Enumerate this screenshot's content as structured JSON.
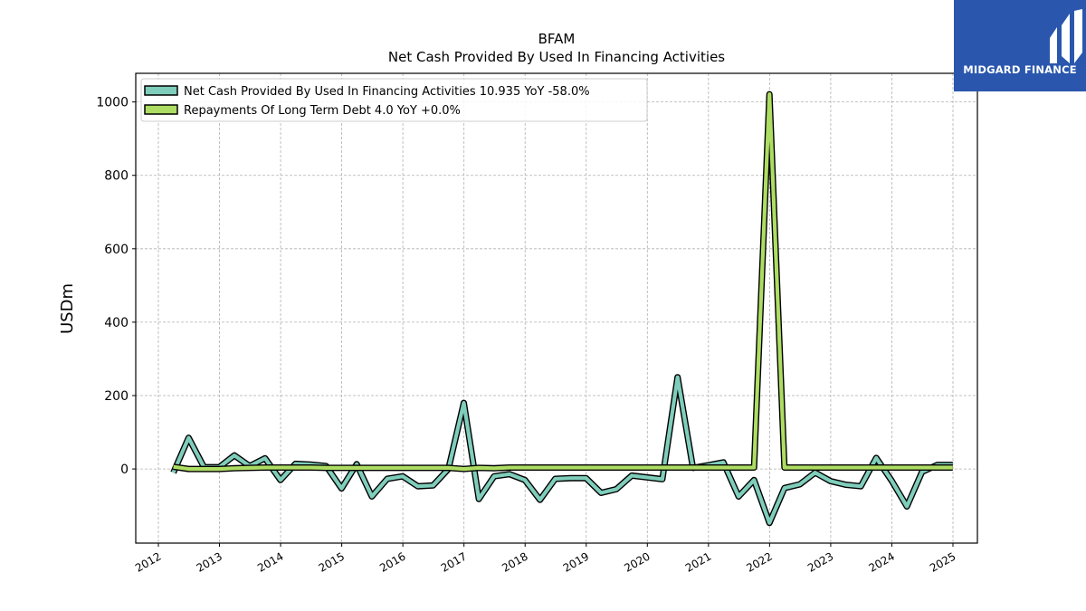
{
  "brand": {
    "name": "MIDGARD FINANCE",
    "background": "#2a57ad"
  },
  "chart_data": {
    "type": "line",
    "title": "BFAM",
    "subtitle": "Net Cash Provided By Used In Financing Activities",
    "xlabel": "",
    "ylabel": "USDm",
    "xlim": [
      2011.63,
      2025.4
    ],
    "ylim": [
      -202,
      1078
    ],
    "x_ticks": [
      "2012",
      "2013",
      "2014",
      "2015",
      "2016",
      "2017",
      "2018",
      "2019",
      "2020",
      "2021",
      "2022",
      "2023",
      "2024",
      "2025"
    ],
    "y_ticks": [
      "0",
      "200",
      "400",
      "600",
      "800",
      "1000"
    ],
    "grid": true,
    "legend_position": "top-left",
    "series": [
      {
        "name": "Net Cash Provided By Used In Financing Activities",
        "legend_label": "Net Cash Provided By Used In Financing Activities  10.935 YoY -58.0%",
        "color": "#7fcdbb",
        "points": [
          [
            "2012-03-31",
            -10
          ],
          [
            "2012-06-30",
            85
          ],
          [
            "2012-09-30",
            5
          ],
          [
            "2012-12-31",
            5
          ],
          [
            "2013-03-31",
            37
          ],
          [
            "2013-06-30",
            8
          ],
          [
            "2013-09-30",
            29
          ],
          [
            "2013-12-31",
            -30
          ],
          [
            "2014-03-31",
            14
          ],
          [
            "2014-06-30",
            12
          ],
          [
            "2014-09-30",
            8
          ],
          [
            "2014-12-31",
            -53
          ],
          [
            "2015-03-31",
            13
          ],
          [
            "2015-06-30",
            -75
          ],
          [
            "2015-09-30",
            -27
          ],
          [
            "2015-12-31",
            -20
          ],
          [
            "2016-03-31",
            -47
          ],
          [
            "2016-06-30",
            -45
          ],
          [
            "2016-09-30",
            0
          ],
          [
            "2016-12-31",
            180
          ],
          [
            "2017-03-31",
            -82
          ],
          [
            "2017-06-30",
            -20
          ],
          [
            "2017-09-30",
            -14
          ],
          [
            "2017-12-31",
            -30
          ],
          [
            "2018-03-31",
            -84
          ],
          [
            "2018-06-30",
            -27
          ],
          [
            "2018-09-30",
            -25
          ],
          [
            "2018-12-31",
            -25
          ],
          [
            "2019-03-31",
            -65
          ],
          [
            "2019-06-30",
            -55
          ],
          [
            "2019-09-30",
            -18
          ],
          [
            "2019-12-31",
            -23
          ],
          [
            "2020-03-31",
            -28
          ],
          [
            "2020-06-30",
            250
          ],
          [
            "2020-09-30",
            3
          ],
          [
            "2020-12-31",
            10
          ],
          [
            "2021-03-31",
            18
          ],
          [
            "2021-06-30",
            -75
          ],
          [
            "2021-09-30",
            -30
          ],
          [
            "2021-12-31",
            -147
          ],
          [
            "2022-03-31",
            -52
          ],
          [
            "2022-06-30",
            -42
          ],
          [
            "2022-09-30",
            -10
          ],
          [
            "2022-12-31",
            -33
          ],
          [
            "2023-03-31",
            -43
          ],
          [
            "2023-06-30",
            -47
          ],
          [
            "2023-09-30",
            30
          ],
          [
            "2023-12-31",
            -32
          ],
          [
            "2024-03-31",
            -102
          ],
          [
            "2024-06-30",
            -8
          ],
          [
            "2024-09-30",
            11
          ],
          [
            "2024-12-31",
            11
          ]
        ]
      },
      {
        "name": "Repayments Of Long Term Debt",
        "legend_label": "Repayments Of Long Term Debt  4.0 YoY +0.0%",
        "color": "#addd63",
        "points": [
          [
            "2012-03-31",
            6
          ],
          [
            "2012-06-30",
            0
          ],
          [
            "2012-09-30",
            0
          ],
          [
            "2012-12-31",
            0
          ],
          [
            "2013-03-31",
            2
          ],
          [
            "2013-06-30",
            3
          ],
          [
            "2013-09-30",
            4
          ],
          [
            "2013-12-31",
            4
          ],
          [
            "2014-03-31",
            4
          ],
          [
            "2014-06-30",
            4
          ],
          [
            "2014-09-30",
            3
          ],
          [
            "2014-12-31",
            3
          ],
          [
            "2015-03-31",
            3
          ],
          [
            "2015-06-30",
            3
          ],
          [
            "2015-09-30",
            3
          ],
          [
            "2015-12-31",
            3
          ],
          [
            "2016-03-31",
            3
          ],
          [
            "2016-06-30",
            3
          ],
          [
            "2016-09-30",
            3
          ],
          [
            "2016-12-31",
            0
          ],
          [
            "2017-03-31",
            3
          ],
          [
            "2017-06-30",
            2
          ],
          [
            "2017-09-30",
            4
          ],
          [
            "2017-12-31",
            4
          ],
          [
            "2018-03-31",
            4
          ],
          [
            "2018-06-30",
            4
          ],
          [
            "2018-09-30",
            4
          ],
          [
            "2018-12-31",
            4
          ],
          [
            "2019-03-31",
            4
          ],
          [
            "2019-06-30",
            4
          ],
          [
            "2019-09-30",
            4
          ],
          [
            "2019-12-31",
            4
          ],
          [
            "2020-03-31",
            4
          ],
          [
            "2020-06-30",
            4
          ],
          [
            "2020-09-30",
            4
          ],
          [
            "2020-12-31",
            4
          ],
          [
            "2021-03-31",
            4
          ],
          [
            "2021-06-30",
            4
          ],
          [
            "2021-09-30",
            4
          ],
          [
            "2021-12-31",
            1021
          ],
          [
            "2022-03-31",
            4
          ],
          [
            "2022-06-30",
            4
          ],
          [
            "2022-09-30",
            4
          ],
          [
            "2022-12-31",
            4
          ],
          [
            "2023-03-31",
            4
          ],
          [
            "2023-06-30",
            4
          ],
          [
            "2023-09-30",
            4
          ],
          [
            "2023-12-31",
            4
          ],
          [
            "2024-03-31",
            4
          ],
          [
            "2024-06-30",
            4
          ],
          [
            "2024-09-30",
            4
          ],
          [
            "2024-12-31",
            4
          ]
        ]
      }
    ]
  }
}
